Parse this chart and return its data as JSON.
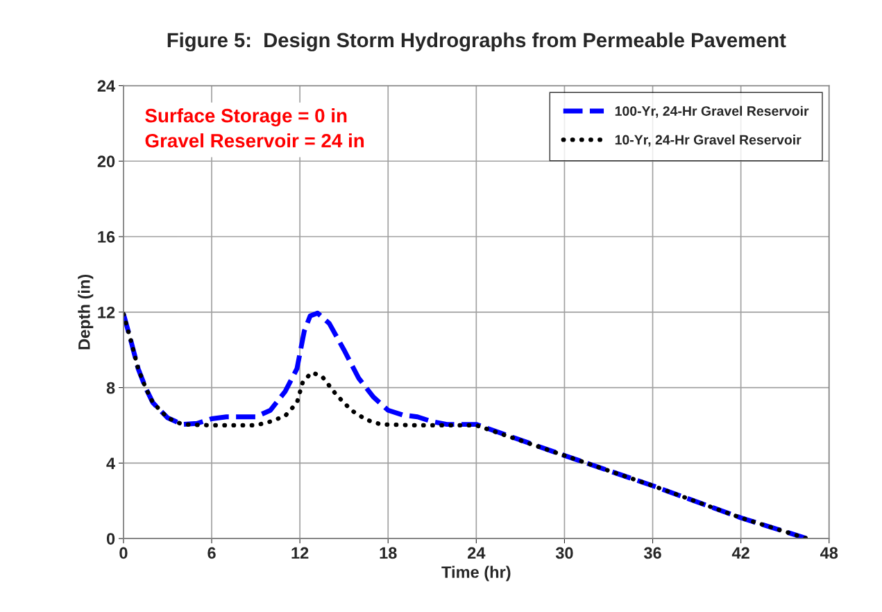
{
  "chart_data": {
    "type": "line",
    "title": "Figure 5:  Design Storm Hydrographs from Permeable Pavement",
    "xlabel": "Time (hr)",
    "ylabel": "Depth (in)",
    "annotations": [
      "Surface Storage = 0 in\nGravel Reservoir = 24 in"
    ],
    "xlim": [
      0,
      48
    ],
    "xticks": [
      0,
      6,
      12,
      18,
      24,
      30,
      36,
      42,
      48
    ],
    "ylim": [
      0,
      24
    ],
    "yticks": [
      0,
      4,
      8,
      12,
      16,
      20,
      24
    ],
    "grid": true,
    "legend": "top right",
    "marker": "none",
    "series": [
      {
        "name": "100-Yr, 24-Hr Gravel Reservoir",
        "color": "#0000ff",
        "line_style": "dashed",
        "x": [
          0,
          0.5,
          1,
          1.5,
          2,
          3,
          4,
          5,
          6,
          7,
          8,
          9,
          10,
          11,
          11.8,
          12.3,
          12.7,
          13.2,
          14,
          15,
          16,
          17,
          18,
          19,
          20,
          21,
          22,
          24,
          30,
          36,
          42,
          46.5
        ],
        "values": [
          11.9,
          10.5,
          9,
          8,
          7.2,
          6.4,
          6.05,
          6.1,
          6.35,
          6.45,
          6.45,
          6.45,
          6.8,
          7.8,
          9,
          11,
          11.8,
          11.95,
          11.4,
          10,
          8.5,
          7.5,
          6.8,
          6.55,
          6.45,
          6.2,
          6.05,
          6.05,
          4.4,
          2.8,
          1.1,
          0
        ]
      },
      {
        "name": "10-Yr, 24-Hr Gravel Reservoir",
        "color": "#000000",
        "line_style": "dotted",
        "x": [
          0,
          0.5,
          1,
          1.5,
          2,
          3,
          4,
          6,
          9,
          10,
          11,
          11.8,
          12.2,
          12.8,
          13.5,
          14.5,
          15.5,
          16.5,
          17.5,
          20,
          24,
          30,
          36,
          42,
          46.5
        ],
        "values": [
          11.9,
          10.5,
          9,
          8,
          7.2,
          6.4,
          6.05,
          6.0,
          6.0,
          6.2,
          6.5,
          7.2,
          8.3,
          8.8,
          8.6,
          7.6,
          6.8,
          6.3,
          6.05,
          6.0,
          6.0,
          4.4,
          2.8,
          1.1,
          0
        ]
      }
    ]
  }
}
